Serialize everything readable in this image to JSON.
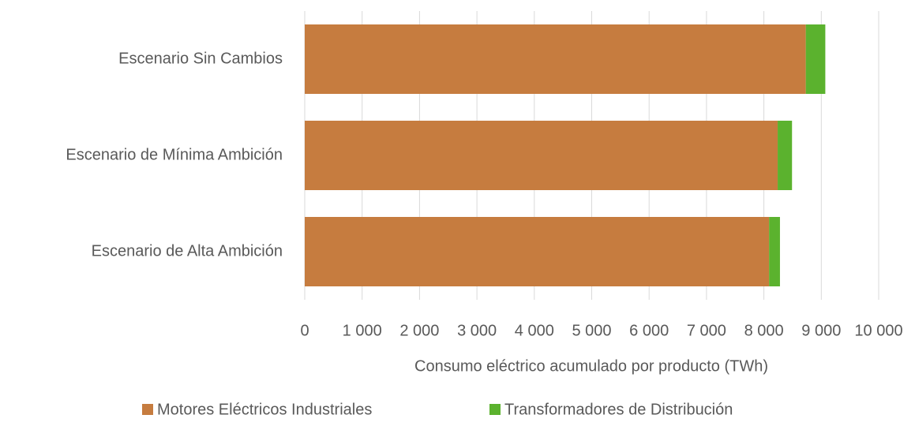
{
  "chart_data": {
    "type": "stacked-barh",
    "categories": [
      "Escenario Sin Cambios",
      "Escenario de Mínima Ambición",
      "Escenario de Alta Ambición"
    ],
    "series": [
      {
        "name": "Motores Eléctricos Industriales",
        "color": "#c67c3f",
        "values": [
          8730,
          8240,
          8090
        ]
      },
      {
        "name": "Transformadores de Distribución",
        "color": "#5bb22e",
        "values": [
          340,
          250,
          190
        ]
      }
    ],
    "xlabel": "Consumo eléctrico acumulado por producto (TWh)",
    "xlim": [
      0,
      10000
    ],
    "xticks": [
      0,
      {
        "value": 1000,
        "label": "1 000"
      },
      {
        "value": 2000,
        "label": "2 000"
      },
      {
        "value": 3000,
        "label": "3 000"
      },
      {
        "value": 4000,
        "label": "4 000"
      },
      {
        "value": 5000,
        "label": "5 000"
      },
      {
        "value": 6000,
        "label": "6 000"
      },
      {
        "value": 7000,
        "label": "7 000"
      },
      {
        "value": 8000,
        "label": "8 000"
      },
      {
        "value": 9000,
        "label": "9 000"
      },
      {
        "value": 10000,
        "label": "10 000"
      }
    ],
    "grid": true,
    "legend": "bottom"
  }
}
